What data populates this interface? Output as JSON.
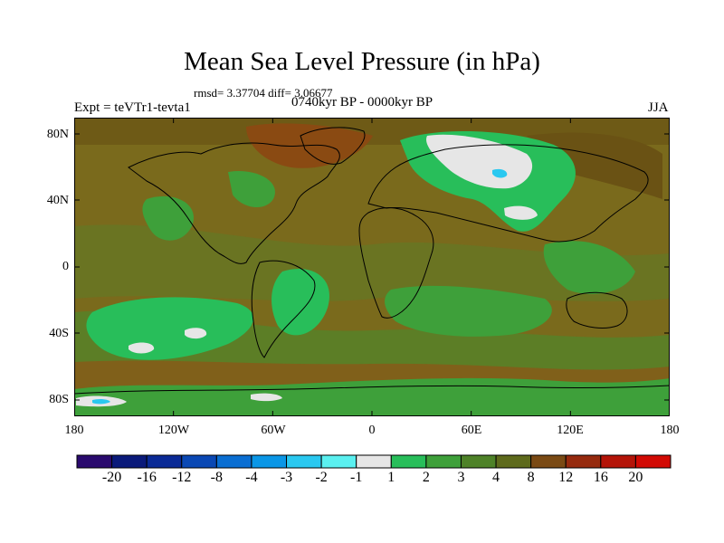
{
  "title": "Mean Sea Level Pressure (in hPa)",
  "stats": "rmsd= 3.37704  diff= 3.06677",
  "experiment": "Expt = teVTr1-tevta1",
  "period": "0740kyr BP - 0000kyr BP",
  "season": "JJA",
  "lat_labels": [
    "80N",
    "40N",
    "0",
    "40S",
    "80S"
  ],
  "lon_labels": [
    "180",
    "120W",
    "60W",
    "0",
    "60E",
    "120E",
    "180"
  ],
  "colorbar": {
    "labels": [
      "-20",
      "-16",
      "-12",
      "-8",
      "-4",
      "-3",
      "-2",
      "-1",
      "1",
      "2",
      "3",
      "4",
      "8",
      "12",
      "16",
      "20"
    ],
    "colors": [
      "#2a0a6e",
      "#0a1a7a",
      "#0a2a96",
      "#0a48b4",
      "#0a6ed2",
      "#0a96e6",
      "#2ac8f0",
      "#5af0f0",
      "#e6e6e6",
      "#28be5a",
      "#3ea03a",
      "#4e8228",
      "#5e6a1c",
      "#7a4a14",
      "#962a0e",
      "#b41408",
      "#d20a04"
    ]
  },
  "map": {
    "background_color": "#7a6a1c"
  }
}
